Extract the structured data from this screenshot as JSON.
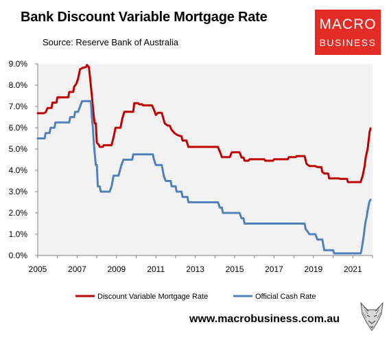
{
  "header": {
    "title": "Bank Discount Variable Mortgage Rate",
    "subtitle": "Source: Reserve Bank of Australia"
  },
  "logo": {
    "line1": "MACRO",
    "line2": "BUSINESS"
  },
  "footer": {
    "url": "www.macrobusiness.com.au"
  },
  "fox_icon": "fox-head-icon",
  "chart_data": {
    "type": "line",
    "title": "Bank Discount Variable Mortgage Rate",
    "xlabel": "",
    "ylabel": "",
    "xlim": [
      2005,
      2022
    ],
    "ylim": [
      0,
      9
    ],
    "x_ticks": [
      "2005",
      "2007",
      "2009",
      "2011",
      "2013",
      "2015",
      "2017",
      "2019",
      "2021"
    ],
    "y_ticks": [
      "0.0%",
      "1.0%",
      "2.0%",
      "3.0%",
      "4.0%",
      "5.0%",
      "6.0%",
      "7.0%",
      "8.0%",
      "9.0%"
    ],
    "grid": false,
    "legend_position": "bottom",
    "plot_background": "#f2f2f2",
    "series": [
      {
        "name": "Discount Variable Mortgage Rate",
        "color": "#c00000",
        "points": [
          [
            2005.0,
            6.68
          ],
          [
            2005.3,
            6.68
          ],
          [
            2005.4,
            6.73
          ],
          [
            2005.5,
            6.93
          ],
          [
            2005.7,
            6.93
          ],
          [
            2005.75,
            7.18
          ],
          [
            2005.95,
            7.18
          ],
          [
            2006.0,
            7.43
          ],
          [
            2006.55,
            7.43
          ],
          [
            2006.6,
            7.68
          ],
          [
            2006.8,
            7.68
          ],
          [
            2006.85,
            7.93
          ],
          [
            2006.95,
            8.05
          ],
          [
            2007.05,
            8.3
          ],
          [
            2007.15,
            8.75
          ],
          [
            2007.3,
            8.82
          ],
          [
            2007.45,
            8.85
          ],
          [
            2007.5,
            8.95
          ],
          [
            2007.6,
            8.85
          ],
          [
            2007.65,
            8.4
          ],
          [
            2007.75,
            7.5
          ],
          [
            2007.85,
            6.5
          ],
          [
            2007.9,
            6.2
          ],
          [
            2007.95,
            6.2
          ],
          [
            2008.0,
            5.3
          ],
          [
            2008.1,
            5.2
          ],
          [
            2008.15,
            5.1
          ],
          [
            2008.3,
            5.1
          ],
          [
            2008.35,
            5.18
          ],
          [
            2008.75,
            5.18
          ],
          [
            2008.85,
            5.55
          ],
          [
            2008.95,
            6.0
          ],
          [
            2009.2,
            6.0
          ],
          [
            2009.3,
            6.45
          ],
          [
            2009.4,
            6.75
          ],
          [
            2009.85,
            6.75
          ],
          [
            2009.9,
            7.15
          ],
          [
            2010.1,
            7.15
          ],
          [
            2010.15,
            7.1
          ],
          [
            2010.3,
            7.1
          ],
          [
            2010.35,
            7.05
          ],
          [
            2010.8,
            7.05
          ],
          [
            2010.9,
            6.85
          ],
          [
            2011.0,
            6.6
          ],
          [
            2011.1,
            6.7
          ],
          [
            2011.3,
            6.7
          ],
          [
            2011.45,
            6.2
          ],
          [
            2011.6,
            6.1
          ],
          [
            2011.7,
            6.1
          ],
          [
            2011.8,
            5.9
          ],
          [
            2011.95,
            5.75
          ],
          [
            2012.1,
            5.65
          ],
          [
            2012.3,
            5.6
          ],
          [
            2012.35,
            5.4
          ],
          [
            2012.55,
            5.4
          ],
          [
            2012.65,
            5.1
          ],
          [
            2014.15,
            5.1
          ],
          [
            2014.25,
            4.88
          ],
          [
            2014.35,
            4.62
          ],
          [
            2014.75,
            4.62
          ],
          [
            2014.85,
            4.85
          ],
          [
            2015.25,
            4.85
          ],
          [
            2015.35,
            4.6
          ],
          [
            2015.45,
            4.6
          ],
          [
            2015.5,
            4.45
          ],
          [
            2015.7,
            4.45
          ],
          [
            2015.75,
            4.52
          ],
          [
            2016.5,
            4.52
          ],
          [
            2016.55,
            4.45
          ],
          [
            2016.95,
            4.45
          ],
          [
            2017.0,
            4.52
          ],
          [
            2017.7,
            4.52
          ],
          [
            2017.75,
            4.62
          ],
          [
            2018.1,
            4.62
          ],
          [
            2018.15,
            4.67
          ],
          [
            2018.55,
            4.67
          ],
          [
            2018.65,
            4.3
          ],
          [
            2018.8,
            4.2
          ],
          [
            2019.1,
            4.2
          ],
          [
            2019.2,
            4.15
          ],
          [
            2019.4,
            4.15
          ],
          [
            2019.45,
            3.93
          ],
          [
            2019.55,
            3.85
          ],
          [
            2019.75,
            3.85
          ],
          [
            2019.8,
            3.62
          ],
          [
            2020.3,
            3.62
          ],
          [
            2020.35,
            3.6
          ],
          [
            2020.7,
            3.6
          ],
          [
            2020.75,
            3.45
          ],
          [
            2021.4,
            3.45
          ],
          [
            2021.5,
            3.75
          ],
          [
            2021.6,
            4.2
          ],
          [
            2021.65,
            4.6
          ],
          [
            2021.75,
            5.0
          ],
          [
            2021.8,
            5.4
          ],
          [
            2021.85,
            5.8
          ],
          [
            2021.9,
            5.97
          ]
        ]
      },
      {
        "name": "Official Cash Rate",
        "color": "#4f81bd",
        "points": [
          [
            2005.0,
            5.5
          ],
          [
            2005.35,
            5.5
          ],
          [
            2005.4,
            5.75
          ],
          [
            2005.6,
            5.75
          ],
          [
            2005.65,
            6.0
          ],
          [
            2005.85,
            6.0
          ],
          [
            2005.9,
            6.25
          ],
          [
            2006.6,
            6.25
          ],
          [
            2006.65,
            6.5
          ],
          [
            2006.85,
            6.5
          ],
          [
            2006.9,
            6.75
          ],
          [
            2007.05,
            6.75
          ],
          [
            2007.15,
            7.0
          ],
          [
            2007.25,
            7.25
          ],
          [
            2007.7,
            7.25
          ],
          [
            2007.75,
            6.5
          ],
          [
            2007.8,
            6.0
          ],
          [
            2007.85,
            5.25
          ],
          [
            2007.9,
            4.75
          ],
          [
            2007.95,
            4.25
          ],
          [
            2008.0,
            4.25
          ],
          [
            2008.05,
            3.25
          ],
          [
            2008.15,
            3.25
          ],
          [
            2008.2,
            3.0
          ],
          [
            2008.65,
            3.0
          ],
          [
            2008.75,
            3.25
          ],
          [
            2008.8,
            3.5
          ],
          [
            2008.85,
            3.75
          ],
          [
            2009.1,
            3.75
          ],
          [
            2009.25,
            4.25
          ],
          [
            2009.35,
            4.5
          ],
          [
            2009.8,
            4.5
          ],
          [
            2009.85,
            4.75
          ],
          [
            2010.85,
            4.75
          ],
          [
            2010.9,
            4.5
          ],
          [
            2011.0,
            4.25
          ],
          [
            2011.3,
            4.25
          ],
          [
            2011.4,
            3.75
          ],
          [
            2011.5,
            3.5
          ],
          [
            2011.75,
            3.5
          ],
          [
            2011.8,
            3.25
          ],
          [
            2012.0,
            3.25
          ],
          [
            2012.05,
            3.0
          ],
          [
            2012.3,
            3.0
          ],
          [
            2012.35,
            2.75
          ],
          [
            2012.6,
            2.75
          ],
          [
            2012.65,
            2.5
          ],
          [
            2014.15,
            2.5
          ],
          [
            2014.25,
            2.25
          ],
          [
            2014.35,
            2.25
          ],
          [
            2014.4,
            2.0
          ],
          [
            2015.25,
            2.0
          ],
          [
            2015.35,
            1.75
          ],
          [
            2015.45,
            1.75
          ],
          [
            2015.5,
            1.5
          ],
          [
            2018.55,
            1.5
          ],
          [
            2018.6,
            1.25
          ],
          [
            2018.8,
            1.0
          ],
          [
            2019.1,
            1.0
          ],
          [
            2019.2,
            0.75
          ],
          [
            2019.45,
            0.75
          ],
          [
            2019.5,
            0.5
          ],
          [
            2019.55,
            0.25
          ],
          [
            2020.0,
            0.25
          ],
          [
            2020.05,
            0.1
          ],
          [
            2021.4,
            0.1
          ],
          [
            2021.45,
            0.3
          ],
          [
            2021.5,
            0.6
          ],
          [
            2021.55,
            0.9
          ],
          [
            2021.6,
            1.3
          ],
          [
            2021.65,
            1.6
          ],
          [
            2021.7,
            1.8
          ],
          [
            2021.75,
            2.1
          ],
          [
            2021.8,
            2.35
          ],
          [
            2021.85,
            2.55
          ],
          [
            2021.9,
            2.62
          ]
        ]
      }
    ]
  }
}
